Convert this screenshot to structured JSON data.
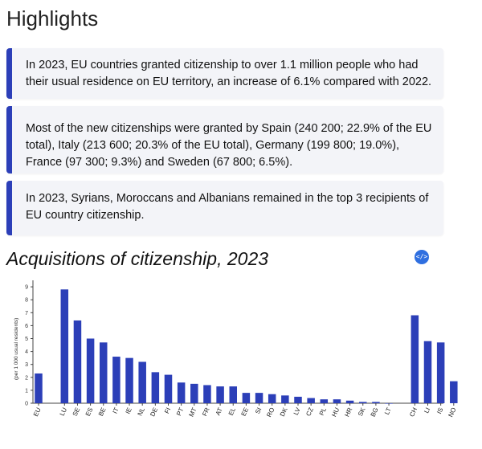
{
  "page": {
    "heading": "Highlights",
    "highlights": [
      "In 2023, EU countries granted citizenship to over 1.1 million people who had their usual residence on EU territory, an increase of 6.1% compared with 2022.",
      "Most of the new citizenships were granted by Spain (240 200; 22.9% of the EU total), Italy (213 600; 20.3% of the EU total), Germany (199 800; 19.0%), France (97 300; 9.3%) and Sweden (67 800; 6.5%).",
      "In 2023, Syrians, Moroccans and Albanians remained in the top 3 recipients of EU country citizenship."
    ],
    "embed_icon": "</>",
    "embed_icon_name": "code-embed-icon"
  },
  "chart_data": {
    "type": "bar",
    "title": "Acquisitions of citizenship, 2023",
    "ylabel": "(per 1 000 usual residents)",
    "xlabel": "",
    "ylim": [
      0,
      9.5
    ],
    "yticks": [
      0,
      1,
      2,
      3,
      4,
      5,
      6,
      7,
      8,
      9
    ],
    "grid": false,
    "bar_color": "#2c3fb8",
    "categories": [
      "EU",
      "",
      "LU",
      "SE",
      "ES",
      "BE",
      "IT",
      "IE",
      "NL",
      "DE",
      "FI",
      "PT",
      "MT",
      "FR",
      "AT",
      "EL",
      "EE",
      "SI",
      "RO",
      "DK",
      "LV",
      "CZ",
      "PL",
      "HU",
      "HR",
      "SK",
      "BG",
      "LT",
      "",
      "CH",
      "LI",
      "IS",
      "NO"
    ],
    "values": [
      2.3,
      null,
      8.8,
      6.4,
      5.0,
      4.7,
      3.6,
      3.5,
      3.2,
      2.4,
      2.2,
      1.6,
      1.5,
      1.4,
      1.3,
      1.3,
      0.8,
      0.8,
      0.7,
      0.6,
      0.5,
      0.4,
      0.3,
      0.3,
      0.2,
      0.1,
      0.1,
      0.0,
      null,
      6.8,
      4.8,
      4.7,
      1.7
    ]
  }
}
